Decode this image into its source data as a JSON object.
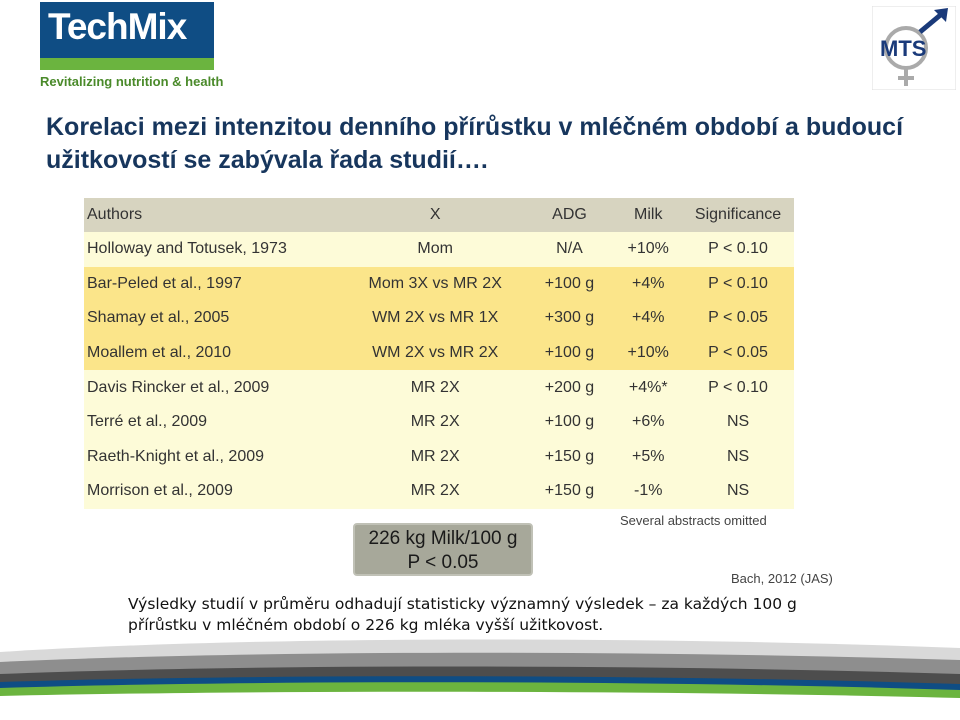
{
  "header": {
    "logo_text": "TechMix",
    "tagline": "Revitalizing nutrition & health",
    "right_logo_text": "MTS"
  },
  "title": "Korelaci mezi intenzitou denního přírůstku v mléčném období a budoucí užitkovostí se zabývala řada studií….",
  "table": {
    "headers": [
      "Authors",
      "X",
      "ADG",
      "Milk",
      "Significance"
    ],
    "rows": [
      [
        "Holloway and Totusek, 1973",
        "Mom",
        "N/A",
        "+10%",
        "P < 0.10"
      ],
      [
        "Bar-Peled et al., 1997",
        "Mom 3X vs MR 2X",
        "+100 g",
        "+4%",
        "P < 0.10"
      ],
      [
        "Shamay et al., 2005",
        "WM 2X vs MR 1X",
        "+300 g",
        "+4%",
        "P < 0.05"
      ],
      [
        "Moallem et al., 2010",
        "WM 2X vs MR 2X",
        "+100 g",
        "+10%",
        "P < 0.05"
      ],
      [
        "Davis Rincker et al., 2009",
        "MR 2X",
        "+200 g",
        "+4%*",
        "P < 0.10"
      ],
      [
        "Terré et al., 2009",
        "MR 2X",
        "+100 g",
        "+6%",
        "NS"
      ],
      [
        "Raeth-Knight et al., 2009",
        "MR 2X",
        "+150 g",
        "+5%",
        "NS"
      ],
      [
        "Morrison et al., 2009",
        "MR 2X",
        "+150 g",
        "-1%",
        "NS"
      ]
    ],
    "row_shading": [
      "light",
      "dark",
      "dark",
      "dark",
      "light",
      "light",
      "light",
      "light"
    ],
    "footnote": "Several abstracts omitted"
  },
  "summary_box": {
    "line1": "226 kg Milk/100 g",
    "line2": "P < 0.05"
  },
  "reference": "Bach, 2012 (JAS)",
  "caption": "Výsledky studií v průměru odhadují statisticky významný výsledek – za každých 100 g přírůstku v mléčném období o 226 kg mléka vyšší užitkovost.",
  "colors": {
    "title": "#17365d",
    "logo_blue": "#0f4d84",
    "logo_green": "#6bb43f",
    "table_header": "#d7d4c0",
    "row_light": "#fdfbd8",
    "row_dark": "#fbe58a",
    "summary_box": "#a7a89a"
  }
}
